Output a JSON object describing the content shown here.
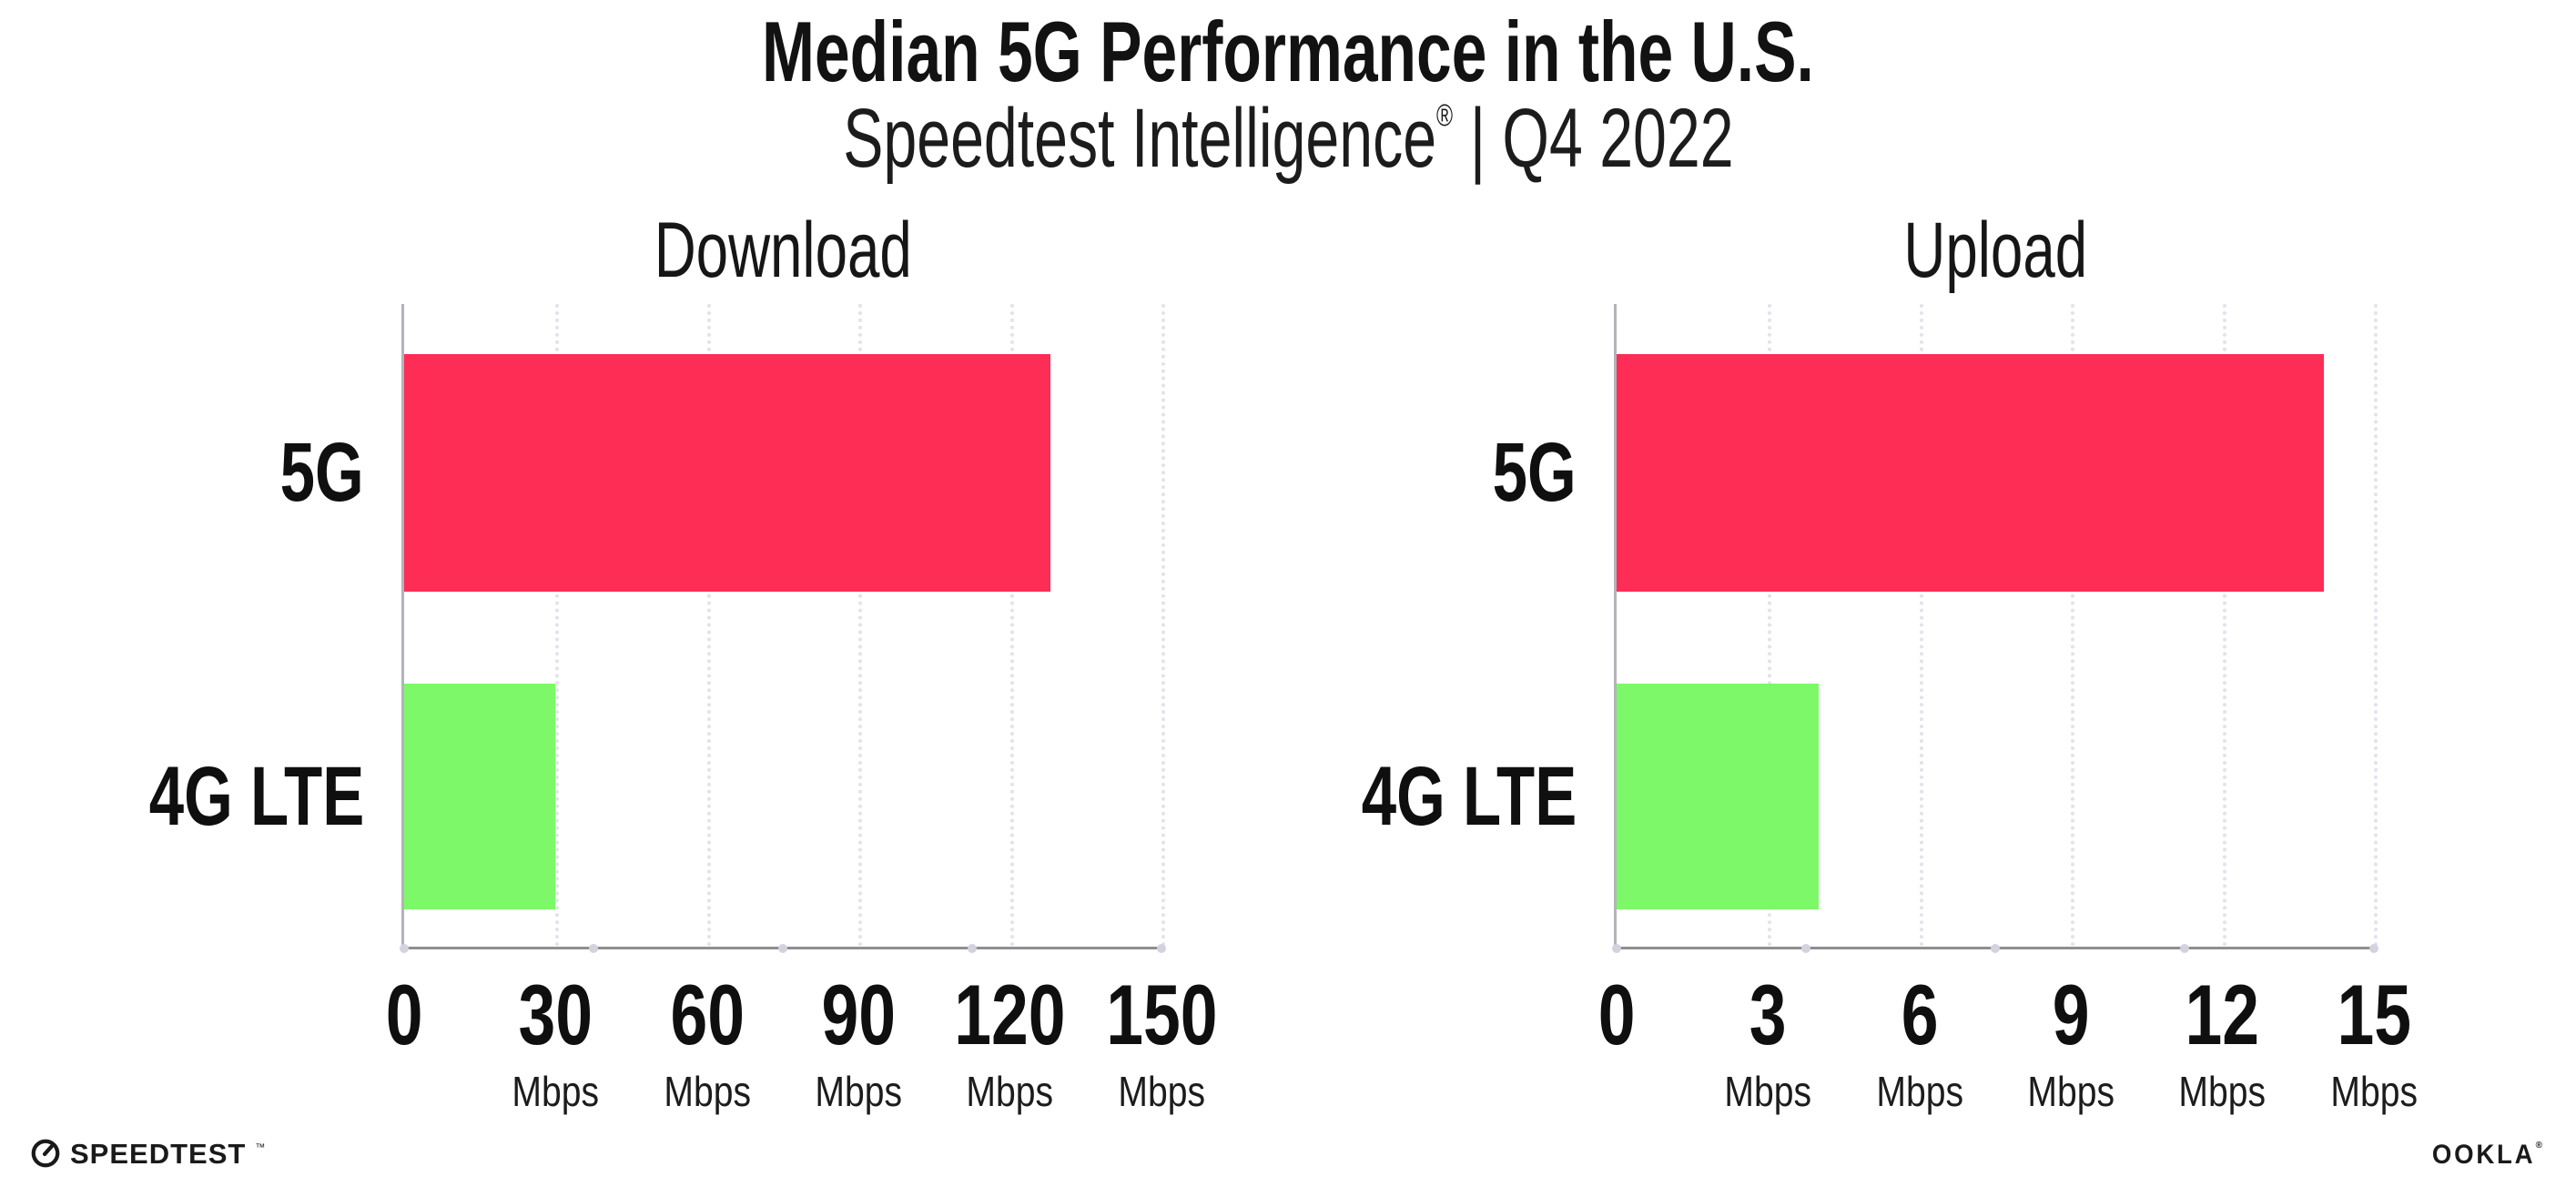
{
  "header": {
    "title": "Median 5G Performance in the U.S.",
    "subtitle_brand": "Speedtest Intelligence",
    "subtitle_reg": "®",
    "subtitle_rest": "| Q4 2022"
  },
  "chart_data": [
    {
      "type": "bar",
      "orientation": "horizontal",
      "title": "Download",
      "categories": [
        "5G",
        "4G LTE"
      ],
      "values": [
        128,
        30
      ],
      "value_unit": "Mbps",
      "xlim": [
        0,
        150
      ],
      "xticks": [
        0,
        30,
        60,
        90,
        120,
        150
      ],
      "tick_unit": "Mbps",
      "bar_colors": [
        "#fd2d55",
        "#7df868"
      ],
      "grid": "dotted-vertical",
      "legend": "none"
    },
    {
      "type": "bar",
      "orientation": "horizontal",
      "title": "Upload",
      "categories": [
        "5G",
        "4G LTE"
      ],
      "values": [
        14,
        4
      ],
      "value_unit": "Mbps",
      "xlim": [
        0,
        15
      ],
      "xticks": [
        0,
        3,
        6,
        9,
        12,
        15
      ],
      "tick_unit": "Mbps",
      "bar_colors": [
        "#fd2d55",
        "#7df868"
      ],
      "grid": "dotted-vertical",
      "legend": "none"
    }
  ],
  "footer": {
    "speedtest_label": "SPEEDTEST",
    "speedtest_mark": "™",
    "ookla_label": "OOKLA",
    "ookla_mark": "®"
  },
  "colors": {
    "bar_5g": "#fd2d55",
    "bar_4g_lte": "#7df868",
    "gridline": "#e2e2ec",
    "axis_line": "#8e8e93",
    "text": "#121212",
    "background": "#ffffff"
  }
}
